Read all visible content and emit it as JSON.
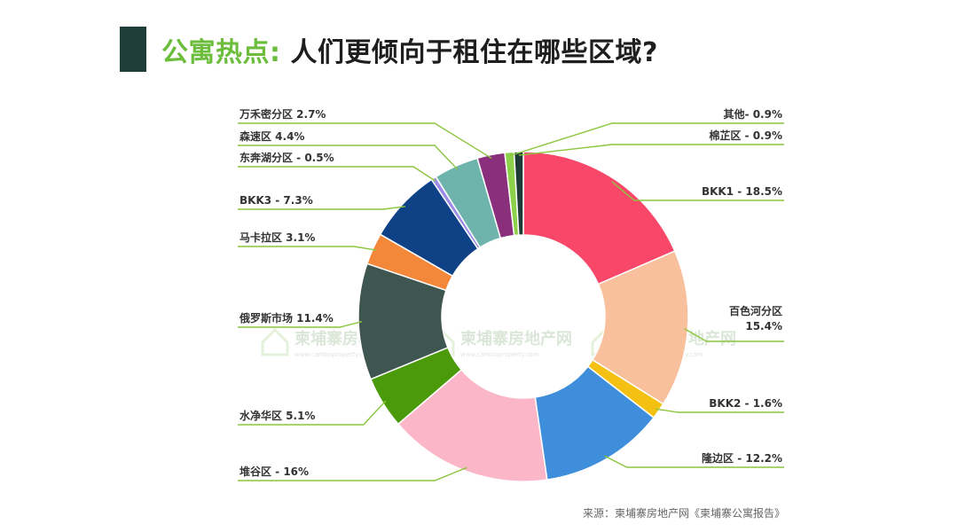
{
  "header": {
    "title_accent": "公寓热点:",
    "title_main": " 人们更倾向于租住在哪些区域?"
  },
  "watermark": {
    "text": "柬埔寨房地产网",
    "url": "www.camboproperty.com"
  },
  "source": "来源：柬埔寨房地产网《柬埔寨公寓报告》",
  "colors": {
    "title_bar": "#1f3d38",
    "accent": "#6cbd3c",
    "leader_line": "#8cc63f"
  },
  "chart_data": {
    "type": "pie",
    "donut": true,
    "start_angle_deg": 0,
    "direction": "clockwise",
    "slices": [
      {
        "label": "BKK1 - 18.5%",
        "value": 18.5,
        "color": "#f9476a",
        "side": "right"
      },
      {
        "label": "百色河分区 15.4%",
        "value": 15.4,
        "color": "#f8c09c",
        "side": "right"
      },
      {
        "label": "BKK2 - 1.6%",
        "value": 1.6,
        "color": "#f4c011",
        "side": "right"
      },
      {
        "label": "隆边区 - 12.2%",
        "value": 12.2,
        "color": "#3e8edc",
        "side": "right"
      },
      {
        "label": "堆谷区 - 16%",
        "value": 16,
        "color": "#fbb6c8",
        "side": "left"
      },
      {
        "label": "水净华区 5.1%",
        "value": 5.1,
        "color": "#4a9a0a",
        "side": "left"
      },
      {
        "label": "俄罗斯市场 11.4%",
        "value": 11.4,
        "color": "#3f5550",
        "side": "left"
      },
      {
        "label": "马卡拉区 3.1%",
        "value": 3.1,
        "color": "#f4883a",
        "side": "left"
      },
      {
        "label": "BKK3 - 7.3%",
        "value": 7.3,
        "color": "#0f4187",
        "side": "left"
      },
      {
        "label": "东奔湖分区 - 0.5%",
        "value": 0.5,
        "color": "#9b8ee6",
        "side": "left"
      },
      {
        "label": "森速区 4.4%",
        "value": 4.4,
        "color": "#6fb4ac",
        "side": "left"
      },
      {
        "label": "万禾密分区 2.7%",
        "value": 2.7,
        "color": "#8a2f7c",
        "side": "left"
      },
      {
        "label": "其他- 0.9%",
        "value": 0.9,
        "color": "#8dd14a",
        "side": "right"
      },
      {
        "label": "棉芷区 - 0.9%",
        "value": 0.9,
        "color": "#1d3a34",
        "side": "right"
      }
    ]
  }
}
